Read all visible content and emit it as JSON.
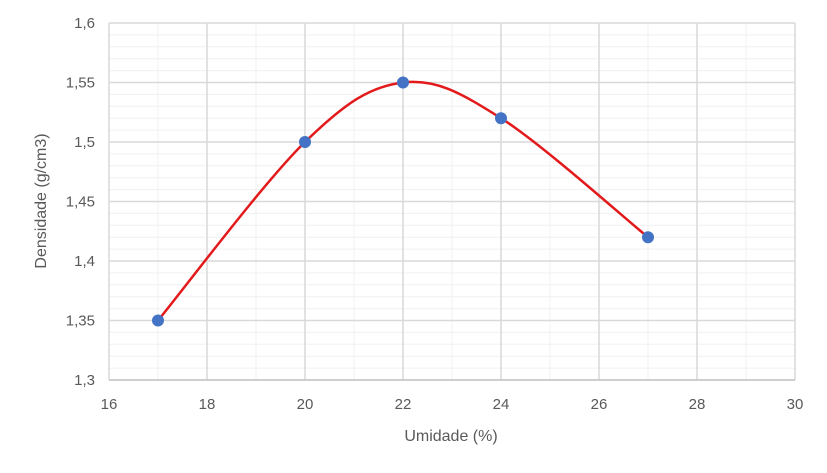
{
  "chart_data": {
    "type": "scatter",
    "title": "",
    "xlabel": "Umidade (%)",
    "ylabel": "Densidade (g/cm3)",
    "xlim": [
      16,
      30
    ],
    "ylim": [
      1.3,
      1.6
    ],
    "x_ticks": [
      16,
      18,
      20,
      22,
      24,
      26,
      28,
      30
    ],
    "x_tick_labels": [
      "16",
      "18",
      "20",
      "22",
      "24",
      "26",
      "28",
      "30"
    ],
    "y_ticks": [
      1.3,
      1.35,
      1.4,
      1.45,
      1.5,
      1.55,
      1.6
    ],
    "y_tick_labels": [
      "1,3",
      "1,35",
      "1,4",
      "1,45",
      "1,5",
      "1,55",
      "1,6"
    ],
    "x_minor_step": 1,
    "y_minor_step": 0.01,
    "grid": true,
    "legend": "none",
    "series": [
      {
        "x": [
          17,
          20,
          22,
          24,
          27
        ],
        "y": [
          1.35,
          1.5,
          1.55,
          1.52,
          1.42
        ],
        "marker_color": "#4472C4",
        "line_color": "#E31A1C",
        "line": "smooth"
      }
    ]
  }
}
